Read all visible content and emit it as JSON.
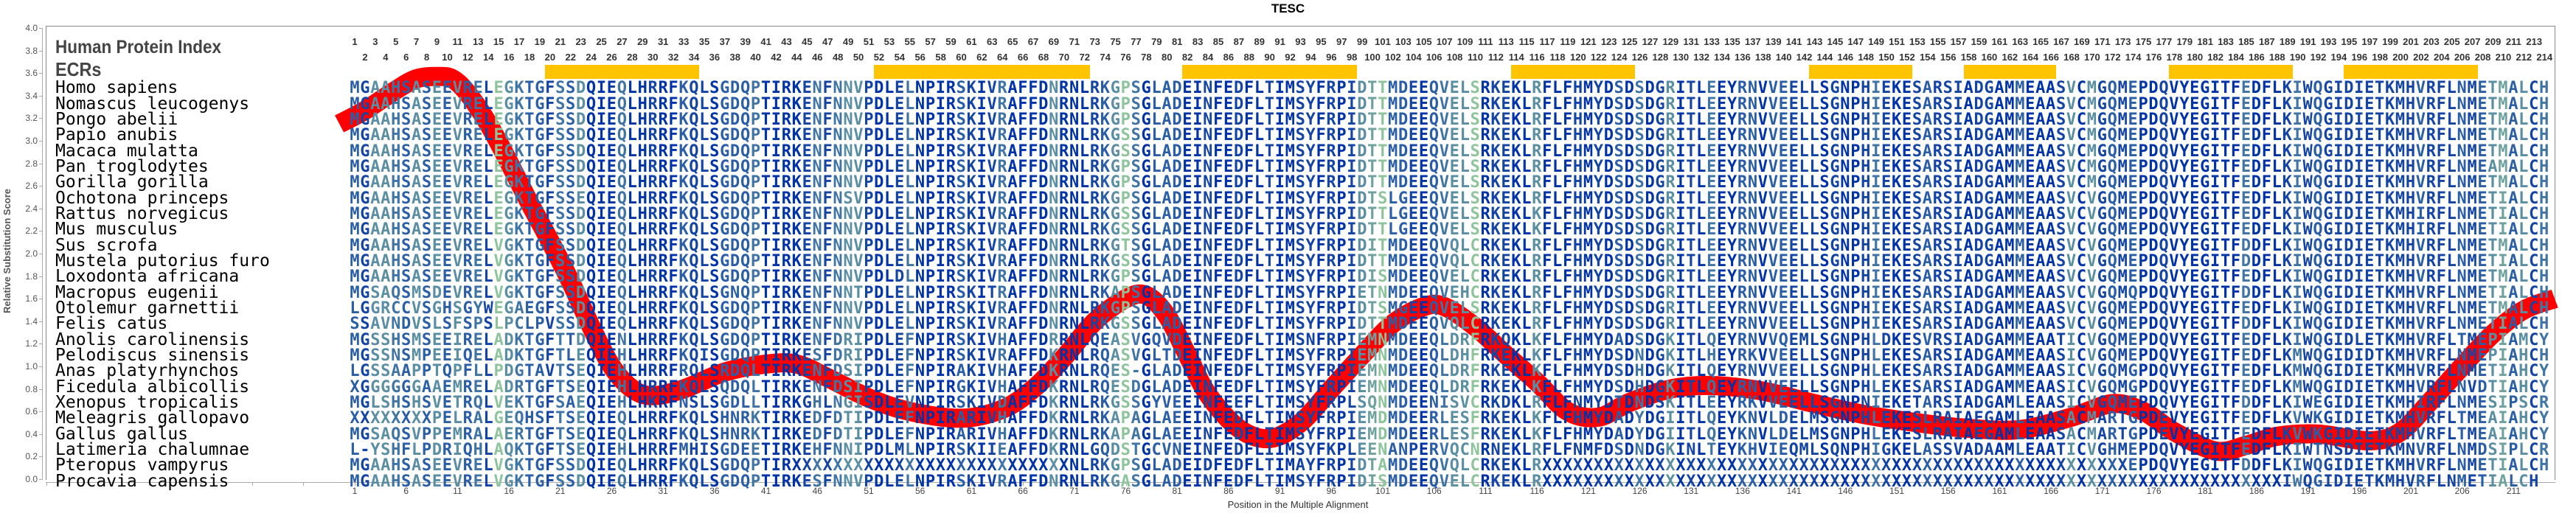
{
  "title": "TESC",
  "labels": {
    "human_protein_index": "Human Protein Index",
    "ecrs": "ECRs"
  },
  "human_protein_index": {
    "start": 1,
    "end": 214
  },
  "colors": {
    "curve": "#ff0000",
    "ecr": "#ffc400",
    "conservation_palette": [
      "#0033a8",
      "#1445a5",
      "#2a5ea6",
      "#3f74a5",
      "#5a8ea3",
      "#6fa29f",
      "#8dc49c"
    ]
  },
  "ecrs": [
    {
      "start": 20,
      "end": 34
    },
    {
      "start": 52,
      "end": 72
    },
    {
      "start": 82,
      "end": 98
    },
    {
      "start": 114,
      "end": 125
    },
    {
      "start": 143,
      "end": 152
    },
    {
      "start": 158,
      "end": 166
    },
    {
      "start": 178,
      "end": 189
    },
    {
      "start": 195,
      "end": 207
    }
  ],
  "alignment": {
    "rows": [
      {
        "species": "Homo sapiens",
        "sequence": "MGAAHSASEEVRELEGKTGFSSDQIEQLHRRFKQLSGDQPTIRKENFNNVPDLELNPIRSKIVRAFFDNRNLRKGPSGLADEINFEDFLTIMSYFRPIDTTMDEEQVELSRKEKLRFLFHMYDSDSDGRITLEEYRNVVEELLSGNPHIEKESARSIADGAMMEAASVCMGQMEPDQVYEGITFEDFLKIWQGIDIETKMHVRFLNMETMALCH"
      },
      {
        "species": "Nomascus leucogenys",
        "sequence": "MGAAHSASEEVRELEGKTGFSSDQIEQLHRRFKQLSGDQPTIRKENFNNVPDLELNPIRSKIVRAFFDNRNLRKGPSGLADEINFEDFLTIMSYFRPIDTTMDEEQVELSRKEKLRFLFHMYDSDSDGRITLEEYRNVVEELLSGNPHIEKESARSIADGAMMEAASVCMGQMEPDQVYEGITFEDFLKIWQGIDIETKMHVRFLNMETMALCH"
      },
      {
        "species": "Pongo abelii",
        "sequence": "MGAAHSASEEVRELEGKTGFSSDQIEQLHRRFKQLSGDQPTIRKENFNNVPDLELNPIRSKIVRAFFDNRNLRKGPSGLADEINFEDFLTIMSYFRPIDTTMDEEQVELSRKEKLRFLFHMYDSDSDGRITLEEYRNVVEELLSGNPHIEKESARSIADGAMMEAASVCMGQMEPDQVYEGITFEDFLKIWQGIDIETKMHVRFLNMETMALCH"
      },
      {
        "species": "Papio anubis",
        "sequence": "MGAAHSASEEVRELEGKTGFSSDQIEQLHRRFKQLSGDQPTIRKENFNNVPDLELNPIRSKIVRAFFDNRNLRKGSSGLADEINFEDFLTIMSYFRPIDTTMDEEQVELSRKEKLRFLFHMYDSDSDGRITLEEYRNVVEELLSGNPHIEKESARSIADGAMMEAASVCMGQMEPDQVYEGITFEDFLKIWQGIDIETKMHVRFLNMETMALCH"
      },
      {
        "species": "Macaca mulatta",
        "sequence": "MGAAHSASEEVRELEGKTGFSSDQIEQLHRRFKQLSGDQPTIRKENFNNVPDLELNPIRSKIVRAFFDNRNLRKGSSGLADEINFEDFLTIMSYFRPIDTTMDEEQVELSRKEKLRFLFHMYDSDSDGRITLEEYRNVVEELLSGNPHIEKESARSIADGAMMEAASVCMGQMEPDQVYEGITFEDFLKIWQGIDIETKMHVRFLNMETMALCH"
      },
      {
        "species": "Pan troglodytes",
        "sequence": "MGAAHSASEEVRELEGKTGFSSDQIEQLHRRFKQLSGDQPTIRKENFNNVPDLELNPIRSKIVRAFFDNRNLRKGPSGLADEINFEDFLTIMSYFRPIDTTMDEEQVELSRKEKLRFLFHMYDSDSDGRITLEEYRNVVEELLSGNPHIEKESARSIADGAMMEAASVCMGQMEPDQVYEGITFEDFLKIWQGIDIETKMHVRFLNMEAMALCH"
      },
      {
        "species": "Gorilla gorilla",
        "sequence": "MGAAHSASEEVRELEGKTGFSSDQIEQLHRRFKQLSGDQPTIRKENFNNVPDLELNPIRSKIVRAFFDNRNLRKGPSGLADEINFEDFLTIMSYFRPIDTTMDEEQVELSRKEKLRFLFHMYDSDSDGRITLEEYRNVVEELLSGNPHIEKESARSIADGAMMEAASVCMGQMEPDQVYEGITFEDFLKIWQGIDIETKMHVRFLNMETMALCH"
      },
      {
        "species": "Ochotona princeps",
        "sequence": "MGAAHSASEEVRELEGKTGFSSEQIEQLHRRFKQLSGDQPTIRKENFNSVPDLELNPIRSKIVRAFFDNRNLRKGPSGLADEINFEDFLTIMSYFRPIDTSLGEEQVELSRKEKLRFLFHMYDSDSDGRITLEEYRNVVEELLSGNPHIEKESARSIADGAMMEAASVCVGQMEPDQVYEGITFEDFLKIWQGIDIETKMHVRFLNMETIALCH"
      },
      {
        "species": "Rattus norvegicus",
        "sequence": "MGAAHSASEEVRELEGKTGFSSDQIEQLHRRFKQLSGDQPTIRKENFNNVPDLELNPIRSKIVRAFFDNRNLRKGSSGLADEINFEDFLTIMSYFRPIDTTLGEEQVELSRKEKLKFLFHMYDSDSDGRITLEEYRNVVEELLSGNPHIEKESARSIADGAMMEAASVCVGQMEPDQVYEGITFEDFLKIWQGIDIETKMHIRFLNMETIALCH"
      },
      {
        "species": "Mus musculus",
        "sequence": "MGAAHSASEEVRELEGKTGFSSDQIEQLHRRFKQLSGDQPTIRKENFNNVPDLELNPIRSKIVRAFFDNRNLRKGSSGLADEINFEDFLTIMSYFRPIDTTLGEEQVELSRKEKLKFLFHMYDSDSDGRITLEEYRNVVEELLSGNPHIEKESARSIADGAMMEAASVCVGQMEPDQVYEGITFEDFLKIWQGIDIETKMHIRFLNMETIALCH"
      },
      {
        "species": "Sus scrofa",
        "sequence": "MGAAHSASEEVRELVGKTGFSSDQIEQLHRRFKQLSGDQPTIRKENFNNVPDLELNPIRSKIVRAFFDNRNLRKGTSGLADEINFEDFLTIMSYFRPIDITMDEEQVQLCRKEKLRFLFHMYDSDSDGRITLEEYRNVVEELLSGNPHIEKESARSIADGAMMEAASVCVGQMEPDQVYEGITFDDFLKIWQGIDIETKMHVRFLNMETMALCH"
      },
      {
        "species": "Mustela putorius furo",
        "sequence": "MGAAHSASEEVRELVGKTGFSSDQIEQLHRRFKQLSGDQPTIRKENFNNVPDLELNPIRSKIVRAFFDNRNLRKGSSGLADEINFEDFLTIMSYFRPIDTTMDEEQVQLCRKEKLRFLFHMYDSDSDGRITLEEYRNVVEELLSGNPHIEKESARSIADGAMMEAASVCVGQMEPDQVYEGITFDDFLKIWQGIDIETKMHVRFLNMETIALCH"
      },
      {
        "species": "Loxodonta africana",
        "sequence": "MGAAHSASEEVRELVGKTGFSSDQIEQLHRRFKQLSGDQPTIRKENFNNVPDLDLNPIRSKIVRAFFDNRNLRKGPSGLADEINFEDFLTIMSYFRPIDISMDEEQVELCRKEKLRFLFHMYDSDSDGRITLEEYRNVVEELLSGNPHIEKESARSIADGAMMEAASVCVGQMEPDQVYEGITFEDFLKIWQGIDIETKMHVRFLNMETMALCH"
      },
      {
        "species": "Macropus eugenii",
        "sequence": "MGSAQSMSDEVRELVGKTGFSSDQIEQLHRRFKQLSGNQPTIRKENFNNTPDLELNPIRSKITRAFFDNRNLRKAPSGLADEINFEDFLTIMSYFRPIETNMDEEQVEHCRKEKLRFLFHMYDSDSDGRITLEEYRNVVEELLSGNPHIEKESARSIADGAMMEAASVCVGQMQPDQVYEGITFDDFLKIWQGIDIETKMHVRFLNMETIALCH"
      },
      {
        "species": "Otolemur garnettii",
        "sequence": "LGGRCCVSGHSGYWEGAEGFSSDQIEQLHRRFKQLSGDQPTIRKENFNNVPDLELNPIRSKIVRAFFDNRNLRKGPSGLADEINFEDFLTIMSYFRPIDTSMGEEQVELSRKEKLRFLFHMYDSDSDGRITLEEYRNVVEELLSGNPHIEKESARSIADGAMMEAASVCVGQMEPDQVYEGITFEDFLKIWQGIDIETKMHVRFLNMETMALCH"
      },
      {
        "species": "Felis catus",
        "sequence": "SSAVNDVSLSFSPSLPCLPVSSDQIEQLHRRFKQLSGDQPTIRKENFNNVPDLELNPIRSKIVRAFFDNRNLRKGSSGLADEINFEDFLTIMSYFRPIDTTMDEEQVQLCRKEKLRFLFHMYDSDSDGRITLEEYRNVVEELLSGNPHIEKESARSIADGAMMEAASVCVGQMEPDQVYEGITFDDFLKIWQGIDIETKMHVRFLNMETIALCH"
      },
      {
        "species": "Anolis carolinensis",
        "sequence": "MGSSHSMSEEIRELADKTGFTTDQIENLHRRFKQLSGDQPTIRKENFDRIPDLEFNPIRSKIVHAFFDRRNLQEASVGQVDEINFEDFLTIMSNFRPIEMNMDEEQLDRFRKQKLKFLFHMYDADSDGKITLQEYRNVVQEMLSGNPHLDKESVRSIADGAMMEAATICVGQMEPDQVYEGITFEDFLKIWQGIDLETKMHVRFLTMEPIAMCY"
      },
      {
        "species": "Pelodiscus sinensis",
        "sequence": "MGSSNSMPEEIQELADKTGFTLEQIEHLHRRFKQISGDQPTIRKESFDRIPDLEFNPIRSKIVRAFFDKRNLRQASVGLTDEINFEDFLTIMSYFRPIEMNMDEEQLDHFRKEKLKFLFHMYDSDNDGKITLHEYRKVVEELLSGNPHLEKESARSIADGAMMEAASICVGQMEPDQVYEGITFEDFLKMWQGIDIDTKMHVRFLNMEPIAHCH"
      },
      {
        "species": "Anas platyrhynchos",
        "sequence": "LGSSAAPPTQPFLLPDGTAVTSEQIEHLHRRFRQLSRDQLTIRKENFDSIPDLEFNPIRAKIVHAFFDKRNLRQES-GLADEINFEDFLTIMSYFRPIEMNMDEEQLDRFRKEKLKFLFHMYDSDHDGKITLQEYRNVVEELLSGNPHLEKESARSIADGAMMEAASICVGQMGPDQVYEGITFEDFLKMWQGIDIETKMHVRFLNMETIAHCY"
      },
      {
        "species": "Ficedula albicollis",
        "sequence": "XGGGGGGAAEMRELADRTGFTSEQIEHLHRRFKQLSQDQLTIRKENFDSIPDLEFNPIRGKIVHAFFDKRNLRQESDGLADEINFEDFLTIMSYFRPIEMNMDEEQLDRFRKEKLKFLFHMYDSDHDGKITLQEYRNVVEELLSGNPHLEKESARSIADGAMMEAASICVGQMGPDQVYEGITFEDFLKMWQGIDIETKMHVRFLNVDTIAHCY"
      },
      {
        "species": "Xenopus tropicalis",
        "sequence": "MGLSHSHSVETRQLVEKTGFSAEQIEHLHKRFNSLSGDLLTIRKGHLNGISDLEVNPIRSKIVDAFFDKRNLRKGSSGYVEEINFEEFLTIMSYFRPLSQNMDEENISVCRKDKLRFLFNMYDTDNDSKITLEEYRKVVEELLSGNPNIEKETARSIADGAMLEAASICVGQMEPDQVYEGITFDDFLKIWEGIDIETKMHIRFLNMESIPSCR"
      },
      {
        "species": "Meleagris gallopavo",
        "sequence": "XXXXXXXXPELRALGEQHSFTSEQIEQLHRRFKQLSHNRKTIRKEDFDTIPDLEFNPIRARIVHAFFDKRNLRKAPAGLAEEINFEDFLTIMSYFRPIEMDMDEERLESFRKEKLKFLFHMYDADYDGIITLQEYKNVLDELMSGNPHLEKESLRAIAEGAMLEAASACMARTGPDEVYEGITFEDFLKVWKGIDIETKMHVRFLTMEAIAHCY"
      },
      {
        "species": "Gallus gallus",
        "sequence": "MGSAQSVPPEMRALAERTGFTSEQIEQLHRRFKQLSHNRKTIRKEDFDTIPDLEFNPIRARIVHAFFDKRNLRKAPAGLAEEINFEDFLTIMSYFRPIEMDMDEERLESFRKEKLKFLFHMYDADYDGIITLQEYKNVLDELMSGNPHLEKESLRAIAEGAMLEAASACMARTGPDEVYEGITFEDFLKVWKGIDIETKMHVRFLTMEAIAHCY"
      },
      {
        "species": "Latimeria chalumnae",
        "sequence": "L-YSHFLPDRIQHLAQKTGFTSEQIEHLHRRFMHISGDEETIRKEHFNNIPDLMLNPIRSKIIEAFFDKRNLGQDSTGCVNEINFEDFLIIMSYFKPLEENANPERVQCNRNEKLRFLFNMFDSDNDGKINLTEYKHVIEQMLSQNPHIGKELASSVADAAMLEAATICVGHMEPDQVYEGITFEDFLKIWTNSDIETKMNVRFLNMDSIPLCR"
      },
      {
        "species": "Pteropus vampyrus",
        "sequence": "MGAAHSASEEVRELVGKTGFSSDQIEQLHRRFKQLSGDQPTIRXXXXXXXXXXXXXXXXXXXXXXXXXXXNLRKGPSGLADEIDFEDFLTIMAYFRPIDTAMDEEQVQLCRKEKLRXXXXXXXXXXXXXXXXXXXXXXXXXXXXXXXXXXXXXXXXXXXXXXXXXXXXXXXXXEPDQVYEGITFDDFLKIWQGIDIETKMHVRFLNMETIALCH"
      },
      {
        "species": "Procavia capensis",
        "sequence": "MGAAHSASEEVRELVGKTGFSSDQIEQLHRRFKQLSGDQPTIRKESFNNVPDLELNPIRSKIVRAFFDNRNLRKGASGLADEINFEDFLTIMSYFRPIDISMDEEQVELCRKEKLRXXXXXXXXXXXXXXXXXXXXXXXXXXXXXXXXXXXXXXXXXXXXXXXXXXXXXXXXXXXXXXXXXXXXXXXXIWQGIDIETKMHVRFLNMETIALCH"
      }
    ]
  },
  "chart_data": {
    "type": "line",
    "title": "TESC",
    "xlabel": "Position in the Multiple Alignment",
    "ylabel": "Relative Substitution Score",
    "ylim": [
      0.0,
      4.0
    ],
    "yticks": [
      "0.0",
      "0.2",
      "0.4",
      "0.6",
      "0.8",
      "1.0",
      "1.2",
      "1.4",
      "1.6",
      "1.8",
      "2.0",
      "2.2",
      "2.4",
      "2.6",
      "2.8",
      "3.0",
      "3.2",
      "3.4",
      "3.6",
      "3.8",
      "4.0"
    ],
    "xticks": [
      1,
      6,
      11,
      16,
      21,
      26,
      31,
      36,
      41,
      46,
      51,
      56,
      61,
      66,
      71,
      76,
      81,
      86,
      91,
      96,
      101,
      106,
      111,
      116,
      121,
      126,
      131,
      136,
      141,
      146,
      151,
      156,
      161,
      166,
      171,
      176,
      181,
      186,
      191,
      196,
      201,
      206,
      211
    ],
    "grid": false,
    "series": [
      {
        "name": "Relative Substitution Score",
        "x": [
          -0.5,
          2,
          5,
          7,
          9,
          10.5,
          12,
          14,
          16,
          18,
          20,
          22,
          24,
          26,
          28,
          30,
          33,
          37,
          41,
          44,
          47,
          51,
          55,
          60,
          64,
          67,
          70,
          73,
          76,
          78,
          80,
          82,
          84,
          87,
          90,
          93,
          96,
          99,
          102,
          105,
          107,
          110,
          113,
          116,
          119,
          122,
          125,
          129,
          133,
          138,
          143,
          148,
          153,
          158,
          163,
          168,
          172,
          175,
          178,
          182,
          185,
          188,
          192,
          197,
          200,
          203,
          206,
          209,
          212,
          215
        ],
        "y": [
          3.15,
          3.27,
          3.45,
          3.55,
          3.57,
          3.55,
          3.42,
          3.15,
          2.81,
          2.45,
          2.11,
          1.75,
          1.35,
          1.0,
          0.8,
          0.74,
          0.8,
          0.95,
          1.02,
          1.02,
          0.9,
          0.72,
          0.6,
          0.54,
          0.62,
          0.8,
          1.08,
          1.4,
          1.6,
          1.63,
          1.45,
          1.1,
          0.75,
          0.45,
          0.36,
          0.5,
          0.8,
          1.1,
          1.38,
          1.53,
          1.53,
          1.35,
          1.1,
          0.86,
          0.6,
          0.55,
          0.68,
          0.8,
          0.83,
          0.78,
          0.67,
          0.57,
          0.5,
          0.45,
          0.44,
          0.55,
          0.67,
          0.6,
          0.42,
          0.25,
          0.3,
          0.38,
          0.4,
          0.34,
          0.42,
          0.7,
          1.0,
          1.29,
          1.5,
          1.6
        ]
      }
    ]
  }
}
